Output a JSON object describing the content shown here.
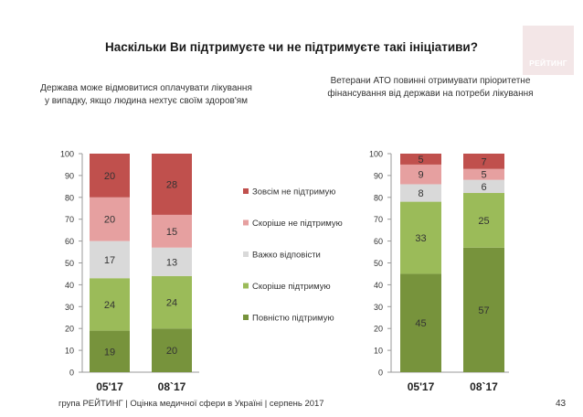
{
  "title": "Наскільки Ви підтримуєте чи не підтримуєте такі ініціативи?",
  "logo_text": "РЕЙТИНГ",
  "footer": "група РЕЙТИНГ | Оцінка медичної сфери в Україні | серпень 2017",
  "page_number": "43",
  "chart_data": [
    {
      "type": "bar",
      "stacked": true,
      "title": "Держава може відмовитися оплачувати лікування у випадку, якщо людина нехтує своїм здоров'ям",
      "categories": [
        "05'17",
        "08`17"
      ],
      "ylim": [
        0,
        100
      ],
      "yticks": [
        "0",
        "10",
        "20",
        "30",
        "40",
        "50",
        "60",
        "70",
        "80",
        "90",
        "100"
      ],
      "legend": "right",
      "series": [
        {
          "name": "Повністю підтримую",
          "color": "#77933c",
          "values": [
            19,
            20
          ]
        },
        {
          "name": "Скоріше підтримую",
          "color": "#9bbb59",
          "values": [
            24,
            24
          ]
        },
        {
          "name": "Важко відповісти",
          "color": "#d9d9d9",
          "values": [
            17,
            13
          ]
        },
        {
          "name": "Скоріше не підтримую",
          "color": "#e6a0a0",
          "values": [
            20,
            15
          ]
        },
        {
          "name": "Зовсім не підтримую",
          "color": "#c0504d",
          "values": [
            20,
            28
          ]
        }
      ]
    },
    {
      "type": "bar",
      "stacked": true,
      "title": "Ветерани АТО повинні отримувати пріоритетне фінансування від держави на потреби лікування",
      "categories": [
        "05'17",
        "08`17"
      ],
      "ylim": [
        0,
        100
      ],
      "yticks": [
        "0",
        "10",
        "20",
        "30",
        "40",
        "50",
        "60",
        "70",
        "80",
        "90",
        "100"
      ],
      "series": [
        {
          "name": "Повністю підтримую",
          "color": "#77933c",
          "values": [
            45,
            57
          ]
        },
        {
          "name": "Скоріше підтримую",
          "color": "#9bbb59",
          "values": [
            33,
            25
          ]
        },
        {
          "name": "Важко відповісти",
          "color": "#d9d9d9",
          "values": [
            8,
            6
          ]
        },
        {
          "name": "Скоріше не підтримую",
          "color": "#e6a0a0",
          "values": [
            9,
            5
          ]
        },
        {
          "name": "Зовсім не підтримую",
          "color": "#c0504d",
          "values": [
            5,
            7
          ]
        }
      ]
    }
  ]
}
